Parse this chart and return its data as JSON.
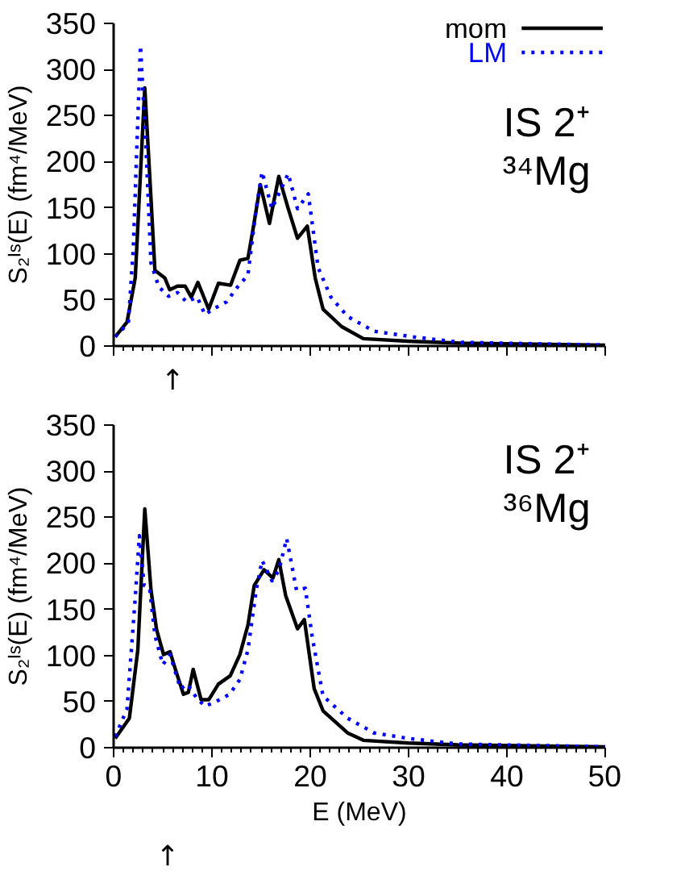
{
  "chart_data": [
    {
      "type": "line",
      "ylabel": "S₂ᴵˢ(E) (fm⁴/MeV)",
      "xlim": [
        0,
        50
      ],
      "ylim": [
        0,
        350
      ],
      "xticks": [
        0,
        10,
        20,
        30,
        40,
        50
      ],
      "yticks": [
        0,
        50,
        100,
        150,
        200,
        250,
        300,
        350
      ],
      "tick_labels": "y",
      "grid": false,
      "legend": "top right",
      "marker": "none",
      "annotations": [
        "IS 2⁺",
        "³⁴Mg",
        "↑"
      ],
      "series": [
        {
          "name": "mom",
          "color": "#000000",
          "line_style": "solid",
          "x": [
            0.16,
            1.36,
            2.2,
            2.73,
            3.17,
            3.66,
            4.2,
            5.2,
            5.7,
            6.5,
            7.27,
            7.9,
            8.57,
            9.67,
            10.66,
            11.9,
            12.84,
            13.66,
            14.2,
            14.92,
            15.85,
            16.8,
            17.76,
            18.7,
            19.7,
            20.5,
            21.3,
            23.2,
            25.4,
            30.4,
            35.3,
            50
          ],
          "values": [
            10,
            26,
            74,
            187,
            280,
            187,
            82,
            74,
            61,
            65,
            65,
            53,
            69,
            40,
            68,
            66,
            93,
            95,
            128,
            175,
            133,
            184,
            149,
            117,
            130,
            74,
            40,
            21,
            8,
            5,
            3,
            1
          ]
        },
        {
          "name": "LM",
          "color": "#0000ff",
          "line_style": "dotted",
          "x": [
            0.16,
            1.5,
            2.0,
            2.73,
            3.3,
            3.8,
            4.6,
            5.6,
            6.5,
            7.4,
            8.5,
            9.3,
            10.1,
            11.5,
            12.6,
            13.66,
            14.5,
            15.1,
            16.1,
            17.76,
            18.7,
            19.8,
            20.8,
            22.1,
            23.8,
            26.5,
            30.4,
            35.3,
            50
          ],
          "values": [
            10,
            25,
            106,
            326,
            213,
            90,
            64,
            54,
            58,
            48,
            53,
            34,
            40,
            48,
            64,
            77,
            149,
            189,
            149,
            187,
            149,
            165,
            85,
            53,
            32,
            16,
            10,
            4,
            1
          ]
        }
      ]
    },
    {
      "type": "line",
      "xlabel": "E (MeV)",
      "ylabel": "S₂ᴵˢ(E) (fm⁴/MeV)",
      "xlim": [
        0,
        50
      ],
      "ylim": [
        0,
        350
      ],
      "xticks": [
        0,
        10,
        20,
        30,
        40,
        50
      ],
      "yticks": [
        0,
        50,
        100,
        150,
        200,
        250,
        300,
        350
      ],
      "grid": false,
      "marker": "none",
      "annotations": [
        "IS 2⁺",
        "³⁶Mg",
        "↑"
      ],
      "series": [
        {
          "color": "#000000",
          "line_style": "solid",
          "x": [
            0.16,
            1.6,
            2.46,
            3.17,
            3.8,
            4.37,
            5.08,
            5.74,
            6.28,
            7.1,
            7.6,
            8.09,
            8.9,
            9.67,
            10.66,
            11.86,
            12.84,
            13.66,
            14.3,
            15.3,
            16.2,
            16.8,
            17.5,
            18.7,
            19.4,
            20.4,
            21.3,
            23.8,
            25.4,
            30,
            35,
            50
          ],
          "values": [
            10,
            32,
            106,
            259,
            171,
            128,
            101,
            104,
            85,
            58,
            60,
            85,
            52,
            52,
            69,
            78,
            101,
            133,
            176,
            193,
            184,
            204,
            165,
            129,
            139,
            64,
            40,
            16,
            8,
            5,
            3,
            1
          ]
        },
        {
          "color": "#0000ff",
          "line_style": "dotted",
          "x": [
            0.16,
            1.36,
            2.18,
            2.62,
            3.1,
            3.66,
            4.2,
            5.0,
            5.74,
            6.8,
            7.5,
            8.5,
            9.3,
            10.4,
            11.8,
            12.84,
            13.66,
            14.5,
            15.1,
            16.1,
            16.8,
            17.6,
            18.6,
            19.5,
            20.2,
            21.3,
            23.8,
            26.5,
            30,
            35,
            50
          ],
          "values": [
            12,
            42,
            160,
            230,
            176,
            173,
            122,
            90,
            101,
            64,
            69,
            53,
            45,
            50,
            58,
            74,
            106,
            171,
            203,
            181,
            192,
            227,
            171,
            173,
            120,
            56,
            32,
            16,
            10,
            4,
            1
          ]
        }
      ]
    }
  ]
}
